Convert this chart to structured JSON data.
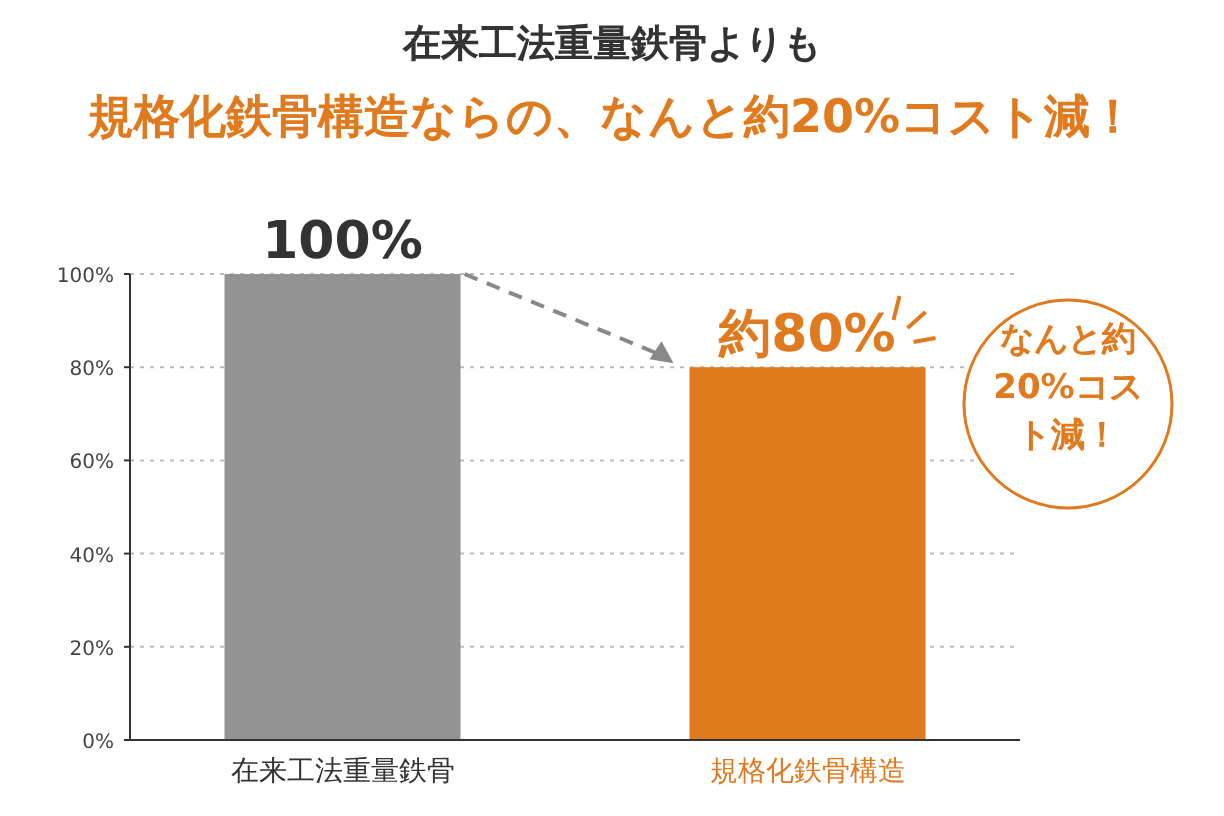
{
  "chart_data": {
    "type": "bar",
    "title": "在来工法重量鉄骨よりも",
    "subtitle": "規格化鉄骨構造ならの、なんと約20%コスト減！",
    "categories": [
      "在来工法重量鉄骨",
      "規格化鉄骨構造"
    ],
    "values": [
      100,
      80
    ],
    "colors": [
      "#939393",
      "#e07a1f"
    ],
    "value_labels": [
      "100%",
      "約80%"
    ],
    "ylim": [
      0,
      100
    ],
    "yticks": [
      {
        "value": 0,
        "label": "0%"
      },
      {
        "value": 20,
        "label": "20%"
      },
      {
        "value": 40,
        "label": "40%"
      },
      {
        "value": 60,
        "label": "60%"
      },
      {
        "value": 80,
        "label": "80%"
      },
      {
        "value": 100,
        "label": "100%"
      }
    ],
    "grid": "y",
    "annotations": [
      "なんと約20%コスト減！"
    ]
  }
}
